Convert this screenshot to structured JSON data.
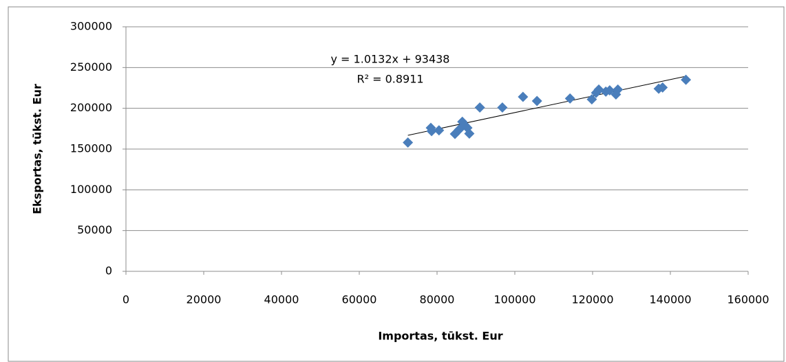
{
  "chart_data": {
    "type": "scatter",
    "xlabel": "Importas, tūkst. Eur",
    "ylabel": "Eksportas, tūkst. Eur",
    "x": [
      72500,
      78400,
      78600,
      80500,
      84600,
      85700,
      86500,
      87100,
      87800,
      88300,
      91000,
      96800,
      102100,
      105700,
      114200,
      119800,
      120900,
      121600,
      123400,
      124400,
      126000,
      126500,
      137000,
      138000,
      144000
    ],
    "values": [
      158000,
      176000,
      172000,
      173000,
      168500,
      174000,
      183500,
      179500,
      176000,
      169000,
      201000,
      201000,
      214000,
      209000,
      212000,
      211000,
      219000,
      223000,
      220500,
      222000,
      217000,
      223000,
      224000,
      225500,
      235000
    ],
    "color": "#4a7ebb",
    "xlim": [
      0,
      160000
    ],
    "xticks": [
      0,
      20000,
      40000,
      60000,
      80000,
      100000,
      120000,
      140000,
      160000
    ],
    "ylim": [
      0,
      300000
    ],
    "yticks": [
      0,
      50000,
      100000,
      150000,
      200000,
      250000,
      300000
    ],
    "grid": true,
    "trendline": {
      "label": "y = 1.0132x + 93438",
      "r2_label": "R² = 0.8911",
      "slope": 1.0132,
      "intercept": 93438
    }
  }
}
